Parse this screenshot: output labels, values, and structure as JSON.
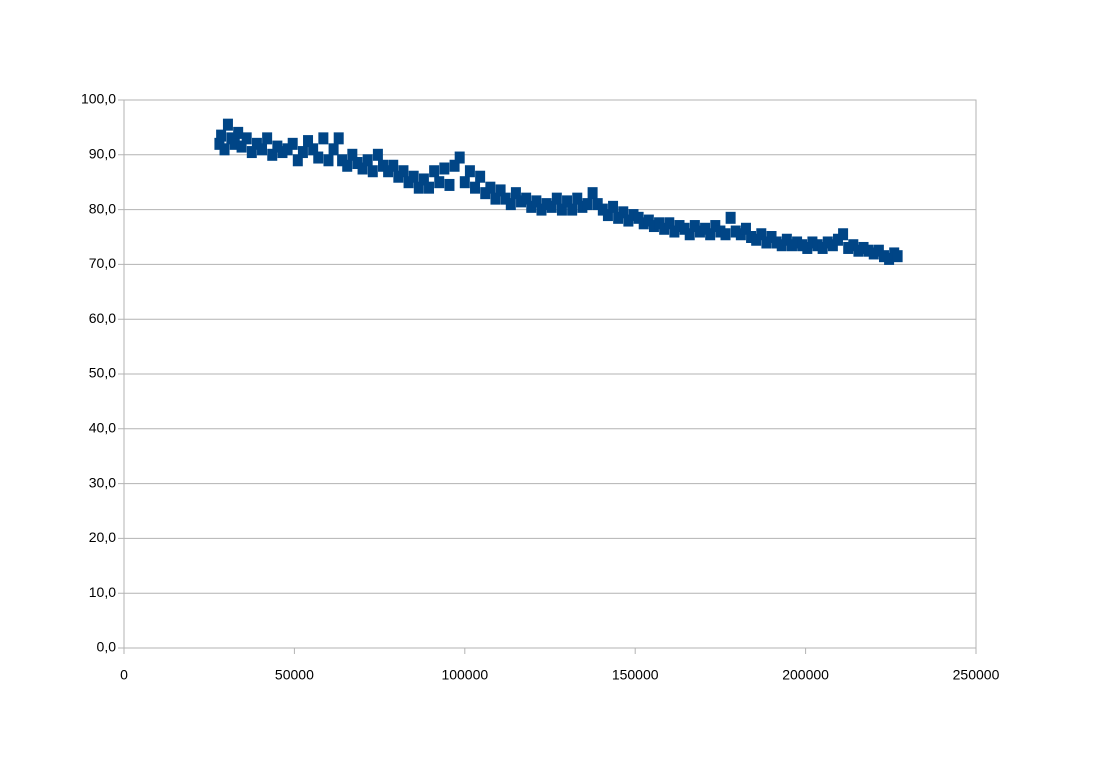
{
  "chart_data": {
    "type": "scatter",
    "series": [
      {
        "color": "#004586",
        "x": [
          28000,
          28500,
          29500,
          30500,
          31500,
          32500,
          33500,
          34500,
          36000,
          37500,
          39000,
          40500,
          42000,
          43500,
          45000,
          46500,
          48000,
          49500,
          51000,
          52500,
          54000,
          55500,
          57000,
          58500,
          60000,
          61500,
          63000,
          64000,
          65500,
          67000,
          68500,
          70000,
          71500,
          73000,
          74500,
          76000,
          77500,
          79000,
          80500,
          82000,
          83500,
          85000,
          86500,
          88000,
          89500,
          91000,
          92500,
          94000,
          95500,
          97000,
          98500,
          100000,
          101500,
          103000,
          104500,
          106000,
          107500,
          109000,
          110500,
          112000,
          113500,
          115000,
          116500,
          118000,
          119500,
          121000,
          122500,
          124000,
          125500,
          127000,
          128500,
          130000,
          131500,
          133000,
          134500,
          136000,
          137500,
          139000,
          140500,
          142000,
          143500,
          145000,
          146500,
          148000,
          149500,
          151000,
          152500,
          154000,
          155500,
          157000,
          158500,
          160000,
          161500,
          163000,
          164500,
          166000,
          167500,
          169000,
          170500,
          172000,
          173500,
          175000,
          176500,
          178000,
          179500,
          181000,
          182500,
          184000,
          185500,
          187000,
          188500,
          190000,
          191500,
          193000,
          194500,
          196000,
          197500,
          199000,
          200500,
          202000,
          203500,
          205000,
          206500,
          208000,
          209500,
          211000,
          212500,
          214000,
          215500,
          217000,
          218500,
          220000,
          221500,
          223000,
          224500,
          226000,
          227000
        ],
        "values": [
          92,
          93.5,
          91,
          95.5,
          93,
          92,
          94,
          91.5,
          93,
          90.5,
          92,
          91,
          93,
          90,
          91.5,
          90.5,
          91,
          92,
          89,
          90.5,
          92.5,
          91,
          89.5,
          93,
          89,
          91,
          93,
          89,
          88,
          90,
          88.5,
          87.5,
          89,
          87,
          90,
          88,
          87,
          88,
          86,
          87,
          85,
          86,
          84,
          85.5,
          84,
          87,
          85,
          87.5,
          84.5,
          88,
          89.5,
          85,
          87,
          84,
          86,
          83,
          84,
          82,
          83.5,
          82,
          81,
          83,
          81.5,
          82,
          80.5,
          81.5,
          80,
          81,
          80.5,
          82,
          80,
          81.5,
          80,
          82,
          80.5,
          81,
          83,
          81,
          80,
          79,
          80.5,
          78.5,
          79.5,
          78,
          79,
          78.5,
          77.5,
          78,
          77,
          77.5,
          76.5,
          77.5,
          76,
          77,
          76.5,
          75.5,
          77,
          76,
          76.5,
          75.5,
          77,
          76,
          75.5,
          78.5,
          76,
          75.5,
          76.5,
          75,
          74.5,
          75.5,
          74,
          75,
          74,
          73.5,
          74.5,
          73.5,
          74,
          73.5,
          73,
          74,
          73.5,
          73,
          74,
          73.5,
          74.5,
          75.5,
          73,
          73.5,
          72.5,
          73,
          72.5,
          72,
          72.5,
          71.5,
          71,
          72,
          71.5
        ]
      }
    ],
    "xlim": [
      0,
      250000
    ],
    "xticks": [
      0,
      50000,
      100000,
      150000,
      200000,
      250000
    ],
    "ylim": [
      0,
      100
    ],
    "yticks": [
      {
        "value": 0,
        "label": "0,0"
      },
      {
        "value": 10,
        "label": "10,0"
      },
      {
        "value": 20,
        "label": "20,0"
      },
      {
        "value": 30,
        "label": "30,0"
      },
      {
        "value": 40,
        "label": "40,0"
      },
      {
        "value": 50,
        "label": "50,0"
      },
      {
        "value": 60,
        "label": "60,0"
      },
      {
        "value": 70,
        "label": "70,0"
      },
      {
        "value": 80,
        "label": "80,0"
      },
      {
        "value": 90,
        "label": "90,0"
      },
      {
        "value": 100,
        "label": "100,0"
      }
    ],
    "grid": true
  }
}
